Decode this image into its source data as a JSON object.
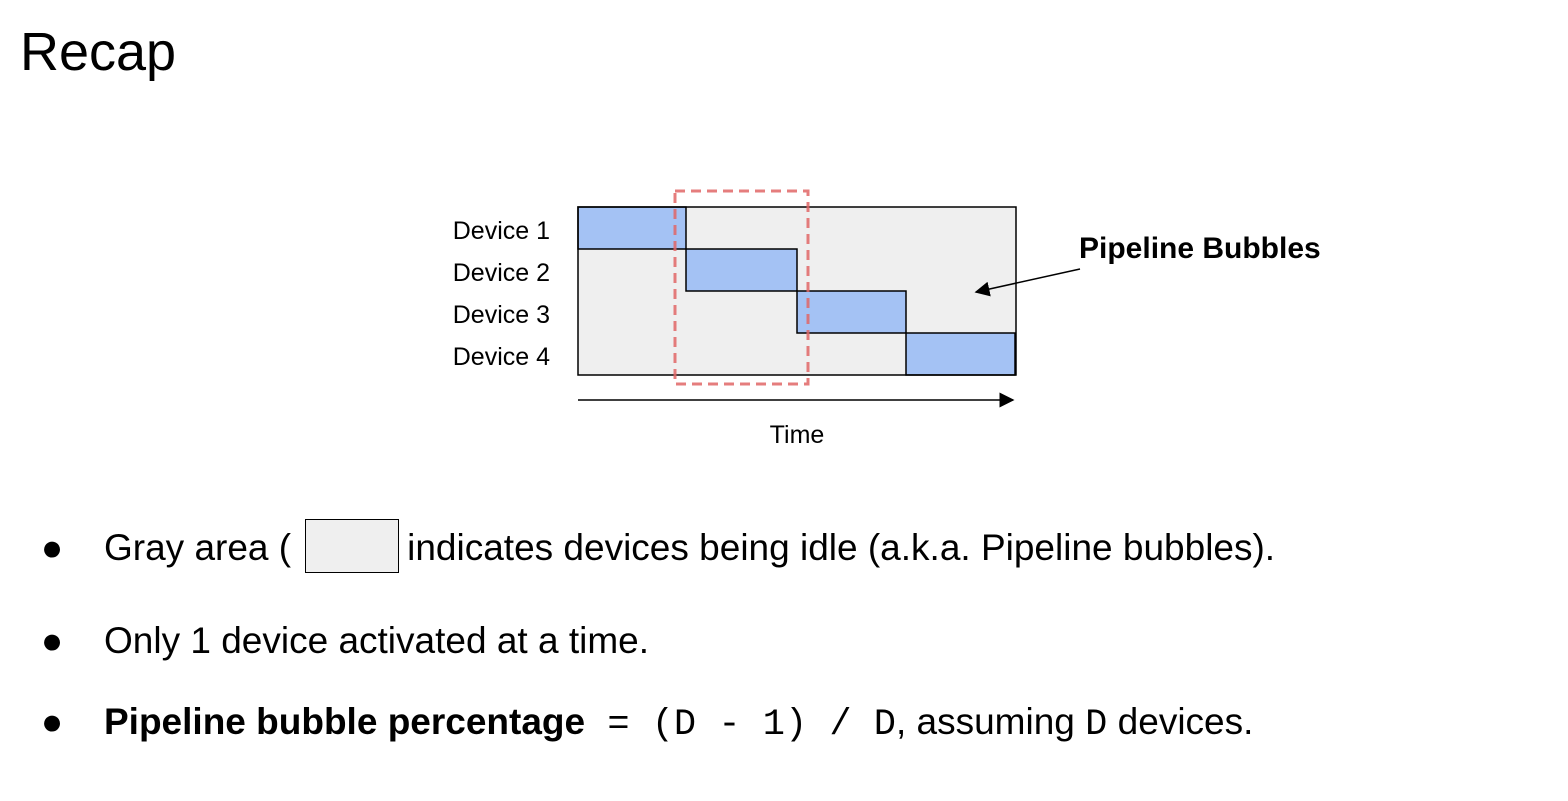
{
  "title": "Recap",
  "diagram": {
    "devices": [
      "Device 1",
      "Device 2",
      "Device 3",
      "Device 4"
    ],
    "time_label": "Time",
    "annotation": "Pipeline Bubbles",
    "colors": {
      "idle": "#efefef",
      "active": "#a4c2f4",
      "highlight": "#e06666",
      "border": "#000000"
    },
    "active_schedule": [
      {
        "device": "Device 1",
        "slot": 1
      },
      {
        "device": "Device 2",
        "slot": 2
      },
      {
        "device": "Device 3",
        "slot": 3
      },
      {
        "device": "Device 4",
        "slot": 4
      }
    ]
  },
  "bullets": {
    "b1_before": "Gray area (",
    "b1_after": "indicates devices being idle (a.k.a. Pipeline bubbles).",
    "b2": "Only 1 device activated at a time.",
    "b3_bold": "Pipeline bubble percentage",
    "b3_formula": " = (D - 1) / D",
    "b3_middle": ", assuming ",
    "b3_var": "D",
    "b3_end": " devices."
  },
  "bullet_glyph": "●"
}
